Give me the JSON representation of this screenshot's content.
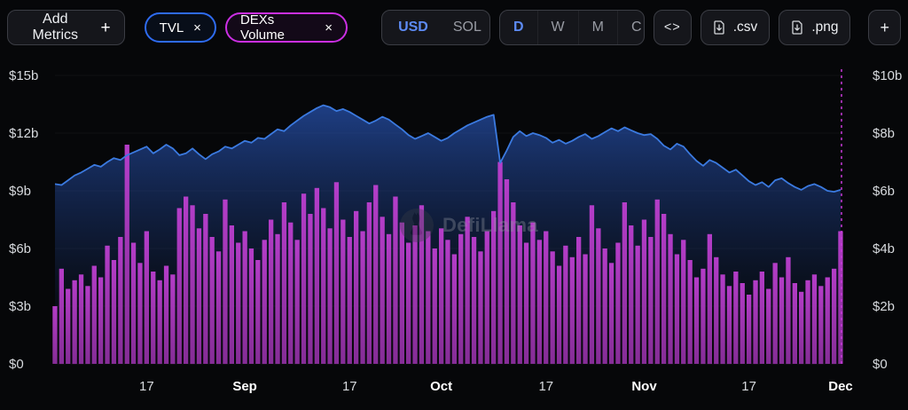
{
  "toolbar": {
    "add_metrics_label": "Add Metrics",
    "add_metrics_plus": "+",
    "metric_pills": [
      {
        "label": "TVL",
        "close": "×",
        "color": "#2e6bf0"
      },
      {
        "label": "DEXs Volume",
        "close": "×",
        "color": "#cb2fe3"
      }
    ],
    "currency_toggle": {
      "options": [
        "USD",
        "SOL"
      ],
      "selected": "USD"
    },
    "interval_toggle": {
      "options": [
        "D",
        "W",
        "M",
        "C"
      ],
      "selected": "D"
    },
    "embed_label": "<>",
    "csv_label": ".csv",
    "png_label": ".png",
    "expand_label": "+"
  },
  "watermark": {
    "text": "DefiLlama"
  },
  "colors": {
    "background": "#060709",
    "tvl_line": "#3b7ae0",
    "volume_bar": "#a837b8",
    "marker_dashed": "#c83adb",
    "accent_blue": "#5d8bf4",
    "accent_magenta": "#cb2fe3"
  },
  "chart_data": {
    "type": "mixed",
    "title": "",
    "legend_position": "top-pills",
    "grid": false,
    "left_axis": {
      "ticks": [
        "$0",
        "$3b",
        "$6b",
        "$9b",
        "$12b",
        "$15b"
      ],
      "tick_values": [
        0,
        3,
        6,
        9,
        12,
        15
      ],
      "min": 0,
      "max": 15,
      "unit": "$b"
    },
    "right_axis": {
      "ticks": [
        "$0",
        "$2b",
        "$4b",
        "$6b",
        "$8b",
        "$10b"
      ],
      "tick_values": [
        0,
        2,
        4,
        6,
        8,
        10
      ],
      "min": 0,
      "max": 10,
      "unit": "$b"
    },
    "x_ticks": [
      {
        "index": 14,
        "label": "17"
      },
      {
        "index": 29,
        "label": "Sep"
      },
      {
        "index": 45,
        "label": "17"
      },
      {
        "index": 59,
        "label": "Oct"
      },
      {
        "index": 75,
        "label": "17"
      },
      {
        "index": 90,
        "label": "Nov"
      },
      {
        "index": 106,
        "label": "17"
      },
      {
        "index": 120,
        "label": "Dec"
      }
    ],
    "series": [
      {
        "name": "TVL",
        "type": "area-line",
        "axis": "left",
        "unit": "$b",
        "color": "#3b7ae0",
        "values": [
          9.35,
          9.3,
          9.55,
          9.8,
          9.95,
          10.15,
          10.35,
          10.25,
          10.5,
          10.7,
          10.6,
          10.85,
          11.0,
          11.15,
          11.3,
          10.95,
          11.15,
          11.4,
          11.2,
          10.85,
          10.95,
          11.2,
          10.9,
          10.65,
          10.9,
          11.05,
          11.3,
          11.2,
          11.4,
          11.6,
          11.5,
          11.75,
          11.7,
          11.95,
          12.2,
          12.1,
          12.4,
          12.65,
          12.9,
          13.1,
          13.3,
          13.45,
          13.35,
          13.15,
          13.25,
          13.1,
          12.9,
          12.7,
          12.5,
          12.65,
          12.85,
          12.7,
          12.45,
          12.2,
          11.9,
          11.7,
          11.85,
          12.0,
          11.8,
          11.6,
          11.75,
          12.0,
          12.2,
          12.4,
          12.55,
          12.7,
          12.85,
          12.95,
          10.45,
          11.1,
          11.8,
          12.1,
          11.85,
          12.0,
          11.9,
          11.75,
          11.5,
          11.65,
          11.45,
          11.6,
          11.8,
          11.95,
          11.7,
          11.85,
          12.05,
          12.25,
          12.1,
          12.3,
          12.15,
          12.0,
          11.9,
          11.95,
          11.7,
          11.35,
          11.15,
          11.45,
          11.3,
          10.9,
          10.55,
          10.3,
          10.6,
          10.45,
          10.2,
          9.95,
          10.1,
          9.8,
          9.5,
          9.3,
          9.45,
          9.2,
          9.55,
          9.65,
          9.4,
          9.2,
          9.05,
          9.25,
          9.35,
          9.2,
          9.0,
          8.95,
          9.05
        ]
      },
      {
        "name": "DEXs Volume",
        "type": "bar",
        "axis": "right",
        "unit": "$b",
        "color": "#a837b8",
        "values": [
          2.0,
          3.3,
          2.6,
          2.9,
          3.1,
          2.7,
          3.4,
          3.0,
          4.1,
          3.6,
          4.4,
          7.6,
          4.2,
          3.5,
          4.6,
          3.2,
          2.9,
          3.4,
          3.1,
          5.4,
          5.8,
          5.5,
          4.7,
          5.2,
          4.4,
          3.9,
          5.7,
          4.8,
          4.2,
          4.6,
          4.0,
          3.6,
          4.3,
          5.0,
          4.5,
          5.6,
          4.9,
          4.3,
          5.9,
          5.2,
          6.1,
          5.4,
          4.7,
          6.3,
          5.0,
          4.4,
          5.3,
          4.6,
          5.6,
          6.2,
          5.1,
          4.5,
          5.8,
          4.9,
          4.2,
          4.8,
          5.5,
          4.6,
          4.0,
          4.7,
          4.3,
          3.8,
          4.5,
          5.1,
          4.4,
          3.9,
          4.6,
          5.3,
          7.0,
          6.4,
          5.6,
          4.8,
          4.2,
          4.9,
          4.3,
          4.6,
          3.9,
          3.4,
          4.1,
          3.7,
          4.4,
          3.8,
          5.5,
          4.7,
          4.0,
          3.5,
          4.2,
          5.6,
          4.8,
          4.1,
          5.0,
          4.4,
          5.7,
          5.2,
          4.5,
          3.8,
          4.3,
          3.6,
          3.0,
          3.3,
          4.5,
          3.7,
          3.1,
          2.7,
          3.2,
          2.8,
          2.4,
          2.9,
          3.2,
          2.6,
          3.5,
          3.0,
          3.7,
          2.8,
          2.5,
          2.9,
          3.1,
          2.7,
          3.0,
          3.3,
          4.6
        ]
      }
    ]
  }
}
